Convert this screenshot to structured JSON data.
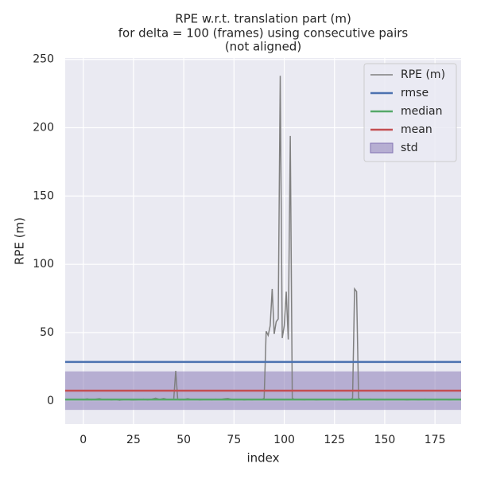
{
  "chart_data": {
    "type": "line",
    "title": [
      "RPE w.r.t. translation part (m)",
      "for delta = 100 (frames) using consecutive pairs",
      "(not aligned)"
    ],
    "xlabel": "index",
    "ylabel": "RPE (m)",
    "x": [
      0,
      2,
      4,
      6,
      8,
      10,
      12,
      14,
      16,
      18,
      20,
      22,
      24,
      26,
      28,
      30,
      32,
      34,
      36,
      38,
      40,
      42,
      44,
      45,
      46,
      47,
      48,
      50,
      52,
      54,
      56,
      58,
      60,
      62,
      64,
      66,
      68,
      70,
      72,
      74,
      76,
      78,
      80,
      82,
      84,
      86,
      88,
      89,
      90,
      91,
      92,
      93,
      94,
      95,
      96,
      97,
      98,
      99,
      100,
      101,
      102,
      103,
      104,
      105,
      107,
      110,
      113,
      116,
      119,
      122,
      125,
      128,
      131,
      133,
      134,
      135,
      136,
      137,
      138,
      140,
      143,
      146,
      149,
      152,
      155,
      158,
      161,
      164,
      167,
      170,
      173,
      176,
      179,
      182,
      185,
      188
    ],
    "series": [
      {
        "name": "RPE (m)",
        "color": "#808080",
        "values": [
          1,
          1.5,
          0.8,
          1.2,
          1.6,
          0.9,
          1.3,
          0.7,
          1.1,
          0.5,
          0.9,
          1.2,
          0.6,
          0.8,
          1,
          1.3,
          0.7,
          1.2,
          2,
          1.1,
          1.8,
          1,
          1.2,
          1,
          22,
          1,
          0.8,
          1,
          1.6,
          0.9,
          1.2,
          0.7,
          1,
          1.1,
          0.8,
          1.3,
          0.9,
          1.5,
          1.8,
          1,
          0.9,
          1.2,
          0.7,
          1,
          0.8,
          1.1,
          0.9,
          1,
          2,
          51,
          48,
          55,
          82,
          49,
          58,
          60,
          238,
          46,
          55,
          80,
          45,
          194,
          2,
          1,
          1,
          0.8,
          1.2,
          0.7,
          1,
          0.9,
          1.1,
          0.8,
          0.6,
          1,
          2,
          82,
          80,
          2,
          1,
          1,
          1.3,
          0.8,
          1,
          1.2,
          0.9,
          1.1,
          0.7,
          1,
          0.8,
          1.3,
          1,
          0.9,
          1.2,
          0.8,
          1,
          0.9
        ]
      }
    ],
    "lines": [
      {
        "name": "rmse",
        "color": "#4c72b0",
        "value": 28.5
      },
      {
        "name": "median",
        "color": "#55a868",
        "value": 1.0
      },
      {
        "name": "mean",
        "color": "#c44e52",
        "value": 7.5
      }
    ],
    "std": {
      "name": "std",
      "color": "#8172b2",
      "value": 14.1
    },
    "xlim": [
      -9,
      188
    ],
    "ylim": [
      -17,
      251
    ],
    "xticks": [
      0,
      25,
      50,
      75,
      100,
      125,
      150,
      175
    ],
    "yticks": [
      0,
      50,
      100,
      150,
      200,
      250
    ],
    "grid": true,
    "legend": "upper right"
  }
}
